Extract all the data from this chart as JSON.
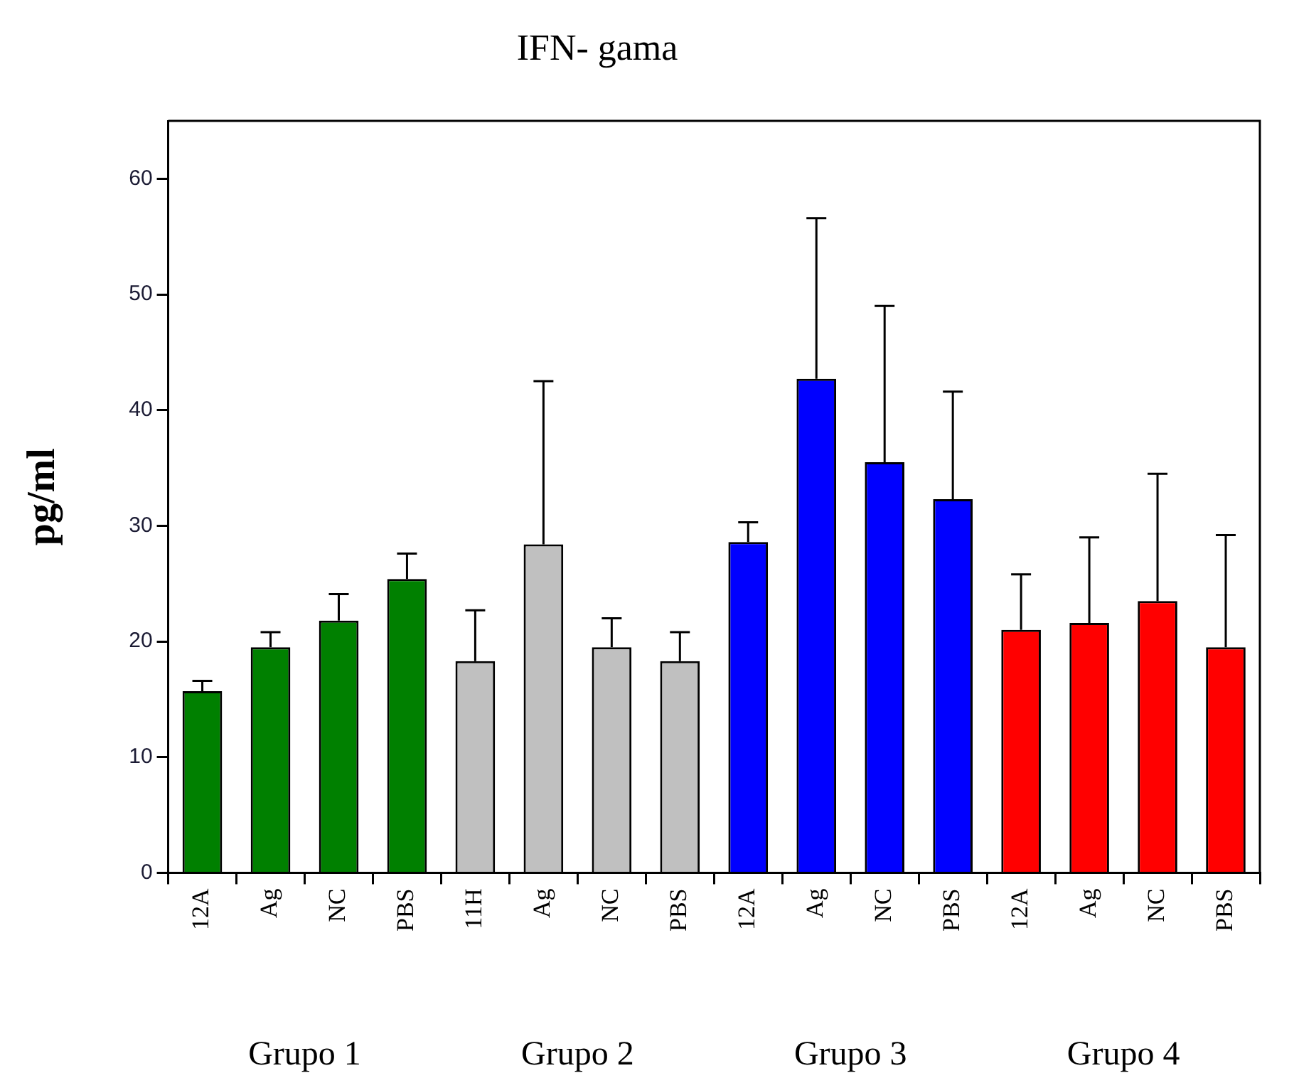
{
  "chart_data": {
    "type": "bar",
    "title": "IFN- gama",
    "ylabel": "pg/ml",
    "categories": [
      "12A",
      "Ag",
      "NC",
      "PBS",
      "11H",
      "Ag",
      "NC",
      "PBS",
      "12A",
      "Ag",
      "NC",
      "PBS",
      "12A",
      "Ag",
      "NC",
      "PBS"
    ],
    "values": [
      15.7,
      19.5,
      21.8,
      25.4,
      18.3,
      28.4,
      19.5,
      18.3,
      28.6,
      42.7,
      35.5,
      32.3,
      21.0,
      21.6,
      23.5,
      19.5
    ],
    "errors": [
      [
        15.7,
        16.6
      ],
      [
        19.5,
        20.8
      ],
      [
        21.8,
        24.1
      ],
      [
        25.4,
        27.6
      ],
      [
        18.3,
        22.7
      ],
      [
        28.4,
        42.5
      ],
      [
        19.5,
        22.0
      ],
      [
        18.3,
        20.8
      ],
      [
        28.6,
        30.3
      ],
      [
        42.7,
        56.6
      ],
      [
        35.5,
        49.0
      ],
      [
        32.3,
        41.6
      ],
      [
        21.0,
        25.8
      ],
      [
        21.6,
        29.0
      ],
      [
        23.5,
        34.5
      ],
      [
        19.5,
        29.2
      ]
    ],
    "colors": [
      "#008000",
      "#008000",
      "#008000",
      "#008000",
      "#c0c0c0",
      "#c0c0c0",
      "#c0c0c0",
      "#c0c0c0",
      "#0000ff",
      "#0000ff",
      "#0000ff",
      "#0000ff",
      "#ff0000",
      "#ff0000",
      "#ff0000",
      "#ff0000"
    ],
    "ylim": [
      0,
      65
    ],
    "yticks": [
      0,
      10,
      20,
      30,
      40,
      50,
      60
    ],
    "grid": false,
    "legend": false,
    "annotations": [
      "Grupo 1",
      "Grupo 2",
      "Grupo 3",
      "Grupo 4"
    ]
  }
}
